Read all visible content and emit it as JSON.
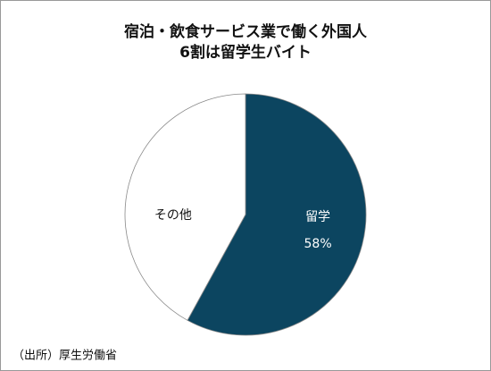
{
  "chart_data": {
    "type": "pie",
    "title": [
      "宿泊・飲食サービス業で働く外国人",
      "6割は留学生バイト"
    ],
    "categories": [
      "留学",
      "その他"
    ],
    "values": [
      58,
      42
    ],
    "value_labels": [
      "58%",
      null
    ],
    "colors": [
      "#0c4560",
      "#ffffff"
    ],
    "source": "（出所）厚生労働省"
  }
}
